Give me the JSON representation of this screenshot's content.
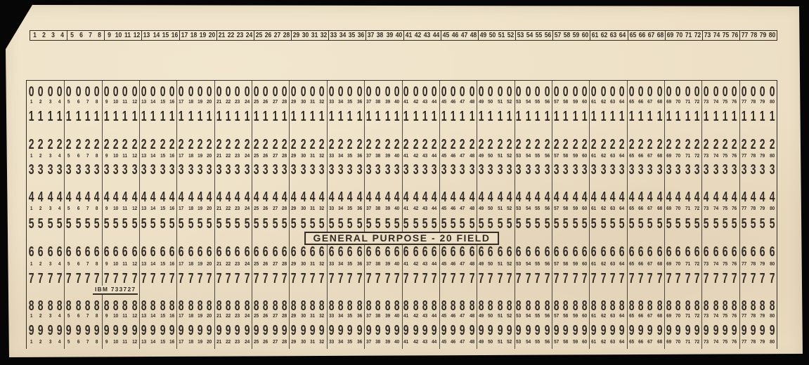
{
  "card": {
    "type_label": "GENERAL PURPOSE - 20 FIELD",
    "part_number": "IBM 733727",
    "fields": 20,
    "columns_per_field": 4,
    "total_columns": 80,
    "digit_rows": [
      "0",
      "1",
      "2",
      "3",
      "4",
      "5",
      "6",
      "7",
      "8",
      "9"
    ],
    "column_numbers": [
      1,
      2,
      3,
      4,
      5,
      6,
      7,
      8,
      9,
      10,
      11,
      12,
      13,
      14,
      15,
      16,
      17,
      18,
      19,
      20,
      21,
      22,
      23,
      24,
      25,
      26,
      27,
      28,
      29,
      30,
      31,
      32,
      33,
      34,
      35,
      36,
      37,
      38,
      39,
      40,
      41,
      42,
      43,
      44,
      45,
      46,
      47,
      48,
      49,
      50,
      51,
      52,
      53,
      54,
      55,
      56,
      57,
      58,
      59,
      60,
      61,
      62,
      63,
      64,
      65,
      66,
      67,
      68,
      69,
      70,
      71,
      72,
      73,
      74,
      75,
      76,
      77,
      78,
      79,
      80
    ],
    "colors": {
      "card": "#ecdfc5",
      "ink": "#332d26",
      "background": "#060606"
    }
  }
}
